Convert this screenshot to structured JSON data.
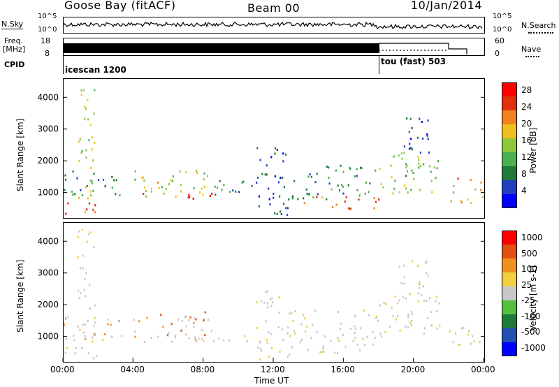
{
  "header": {
    "station": "Goose Bay (fitACF)",
    "beam": "Beam 00",
    "date": "10/Jan/2014"
  },
  "nsky": {
    "label": "N.Sky",
    "ticks": [
      "10^5",
      "10^0"
    ],
    "right_label": "N.Search",
    "right_ticks": [
      "10^5",
      "10^0"
    ]
  },
  "freq": {
    "label_line1": "Freq.",
    "label_line2": "[MHz]",
    "ticks": [
      "18",
      "8"
    ],
    "right_label": "Nave",
    "right_ticks": [
      "60",
      "0"
    ]
  },
  "cpid": {
    "label": "CPID",
    "modes": [
      {
        "name": "icescan 1200",
        "start_hour": 0.0
      },
      {
        "name": "tou (fast) 503",
        "start_hour": 18.0
      }
    ]
  },
  "colors": {
    "power": [
      "#0000ff",
      "#2040c0",
      "#1f7a3a",
      "#4caf50",
      "#8dc63f",
      "#f0c020",
      "#f08020",
      "#e03010",
      "#ff0000"
    ],
    "velocity": [
      "#0000ff",
      "#2050b0",
      "#1f7a3a",
      "#55c040",
      "#c8c8c8",
      "#f0d040",
      "#f09020",
      "#e05010",
      "#ff0000"
    ]
  },
  "chart_data": [
    {
      "type": "heatmap",
      "panel": "power",
      "ylabel": "Slant Range [km]",
      "y_ticks": [
        "1000",
        "2000",
        "3000",
        "4000"
      ],
      "ylim": [
        200,
        4600
      ],
      "colorbar_label": "Power [dB]",
      "colorbar_ticks": [
        "4",
        "8",
        "12",
        "16",
        "20",
        "24",
        "28"
      ],
      "colorbar_range": [
        0,
        30
      ],
      "regions": [
        {
          "t0": 0.0,
          "t1": 2.5,
          "r0": 300,
          "r1": 700,
          "v": 24
        },
        {
          "t0": 0.0,
          "t1": 3.5,
          "r0": 900,
          "r1": 1700,
          "v": 10
        },
        {
          "t0": 0.8,
          "t1": 1.8,
          "r0": 700,
          "r1": 4400,
          "v": 16
        },
        {
          "t0": 4.0,
          "t1": 8.5,
          "r0": 900,
          "r1": 1800,
          "v": 16
        },
        {
          "t0": 4.5,
          "t1": 8.5,
          "r0": 800,
          "r1": 1000,
          "v": 28
        },
        {
          "t0": 8.5,
          "t1": 11.0,
          "r0": 800,
          "r1": 1400,
          "v": 8
        },
        {
          "t0": 11.0,
          "t1": 13.0,
          "r0": 300,
          "r1": 2500,
          "v": 6
        },
        {
          "t0": 13.0,
          "t1": 18.0,
          "r0": 800,
          "r1": 1900,
          "v": 10
        },
        {
          "t0": 13.5,
          "t1": 18.0,
          "r0": 500,
          "r1": 900,
          "v": 22
        },
        {
          "t0": 18.0,
          "t1": 21.5,
          "r0": 1000,
          "r1": 2400,
          "v": 14
        },
        {
          "t0": 19.0,
          "t1": 21.0,
          "r0": 2200,
          "r1": 3400,
          "v": 6
        },
        {
          "t0": 22.0,
          "t1": 24.0,
          "r0": 700,
          "r1": 1500,
          "v": 20
        }
      ]
    },
    {
      "type": "heatmap",
      "panel": "velocity",
      "xlabel": "Time UT",
      "ylabel": "Slant Range [km]",
      "x_ticks": [
        "00:00",
        "04:00",
        "08:00",
        "12:00",
        "16:00",
        "20:00",
        "00:00"
      ],
      "xlim": [
        0,
        24
      ],
      "y_ticks": [
        "1000",
        "2000",
        "3000",
        "4000"
      ],
      "ylim": [
        200,
        4600
      ],
      "colorbar_label": "Velocity [m s-1]",
      "colorbar_ticks": [
        "1000",
        "500",
        "100",
        "25",
        "-25",
        "-100",
        "-500",
        "-1000"
      ],
      "regions": [
        {
          "t0": 0.0,
          "t1": 2.5,
          "r0": 300,
          "r1": 700,
          "v": 4
        },
        {
          "t0": 0.0,
          "t1": 3.5,
          "r0": 900,
          "r1": 1700,
          "v": 5
        },
        {
          "t0": 0.8,
          "t1": 1.8,
          "r0": 700,
          "r1": 4400,
          "v": 4
        },
        {
          "t0": 4.0,
          "t1": 8.5,
          "r0": 900,
          "r1": 1800,
          "v": 6
        },
        {
          "t0": 4.5,
          "t1": 11.0,
          "r0": 800,
          "r1": 1100,
          "v": 4
        },
        {
          "t0": 11.0,
          "t1": 13.0,
          "r0": 300,
          "r1": 2500,
          "v": 4
        },
        {
          "t0": 13.0,
          "t1": 18.0,
          "r0": 500,
          "r1": 1900,
          "v": 4
        },
        {
          "t0": 18.0,
          "t1": 21.5,
          "r0": 1000,
          "r1": 2400,
          "v": 4
        },
        {
          "t0": 19.0,
          "t1": 21.0,
          "r0": 2200,
          "r1": 3400,
          "v": 4
        },
        {
          "t0": 22.0,
          "t1": 24.0,
          "r0": 700,
          "r1": 1500,
          "v": 4
        }
      ]
    }
  ]
}
